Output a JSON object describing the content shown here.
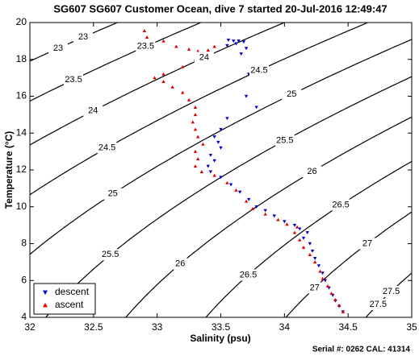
{
  "chart_data": {
    "type": "scatter",
    "title": "SG607 SG607 Customer Ocean, dive 7 started 20-Jul-2016 12:49:47",
    "x_label": "Salinity (psu)",
    "y_label": "Temperature (°C)",
    "footer": "Serial #: 0262  CAL: 41314",
    "xlim": [
      32,
      35
    ],
    "ylim": [
      4,
      20
    ],
    "xticks": [
      32,
      32.5,
      33,
      33.5,
      34,
      34.5,
      35
    ],
    "yticks": [
      4,
      6,
      8,
      10,
      12,
      14,
      16,
      18,
      20
    ],
    "legend": "lower left",
    "contours": [
      {
        "level": 23
      },
      {
        "level": 23.5
      },
      {
        "level": 24
      },
      {
        "level": 24.5
      },
      {
        "level": 25
      },
      {
        "level": 25.5
      },
      {
        "level": 26
      },
      {
        "level": 26.5
      },
      {
        "level": 27
      },
      {
        "level": 27.5
      }
    ],
    "series": [
      {
        "name": "descent",
        "color": "#0000cc",
        "marker": "down",
        "x": [
          33.56,
          33.6,
          33.64,
          33.68,
          33.62,
          33.55,
          33.7,
          33.66,
          33.72,
          33.7,
          33.78,
          33.55,
          33.5,
          33.45,
          33.48,
          33.5,
          33.42,
          33.45,
          33.4,
          33.42,
          33.5,
          33.58,
          33.65,
          33.72,
          33.78,
          33.85,
          33.92,
          34.0,
          34.08,
          34.12,
          34.18,
          34.15,
          34.2,
          34.22,
          34.24,
          34.27,
          34.3,
          34.32,
          34.35,
          34.38,
          34.4,
          34.43,
          34.46
        ],
        "values": [
          19.05,
          19.0,
          19.0,
          18.95,
          18.85,
          18.75,
          18.6,
          18.3,
          17.2,
          16.0,
          15.4,
          14.8,
          14.2,
          13.8,
          13.5,
          13.2,
          12.8,
          12.5,
          12.2,
          11.9,
          11.6,
          11.2,
          10.8,
          10.4,
          10.0,
          9.8,
          9.5,
          9.2,
          9.0,
          8.8,
          8.6,
          8.3,
          8.0,
          7.6,
          7.2,
          6.8,
          6.4,
          6.0,
          5.6,
          5.2,
          4.9,
          4.6,
          4.3
        ]
      },
      {
        "name": "ascent",
        "color": "#dd0000",
        "marker": "up",
        "x": [
          32.9,
          32.92,
          33.05,
          33.15,
          33.25,
          33.32,
          33.4,
          33.45,
          33.38,
          33.3,
          33.2,
          33.05,
          32.98,
          33.05,
          33.12,
          33.2,
          33.25,
          33.3,
          33.3,
          33.28,
          33.3,
          33.32,
          33.36,
          33.3,
          33.32,
          33.3,
          33.35,
          33.45,
          33.55,
          33.62,
          33.7,
          33.75,
          33.85,
          33.95,
          34.02,
          34.1,
          34.08,
          34.12,
          34.15,
          34.2,
          34.24,
          34.28,
          34.3,
          34.34,
          34.37,
          34.4,
          34.43,
          34.46
        ],
        "values": [
          19.55,
          19.2,
          19.0,
          18.7,
          18.55,
          18.45,
          18.5,
          18.7,
          18.3,
          18.0,
          17.6,
          17.2,
          17.0,
          16.8,
          16.5,
          16.2,
          15.8,
          15.4,
          15.0,
          14.6,
          14.2,
          13.8,
          13.4,
          13.0,
          12.6,
          12.2,
          11.9,
          11.7,
          11.3,
          10.9,
          10.3,
          9.9,
          9.6,
          9.3,
          9.05,
          8.9,
          8.6,
          8.2,
          7.8,
          7.4,
          7.0,
          6.5,
          6.1,
          5.7,
          5.3,
          4.95,
          4.65,
          4.3
        ]
      }
    ]
  }
}
